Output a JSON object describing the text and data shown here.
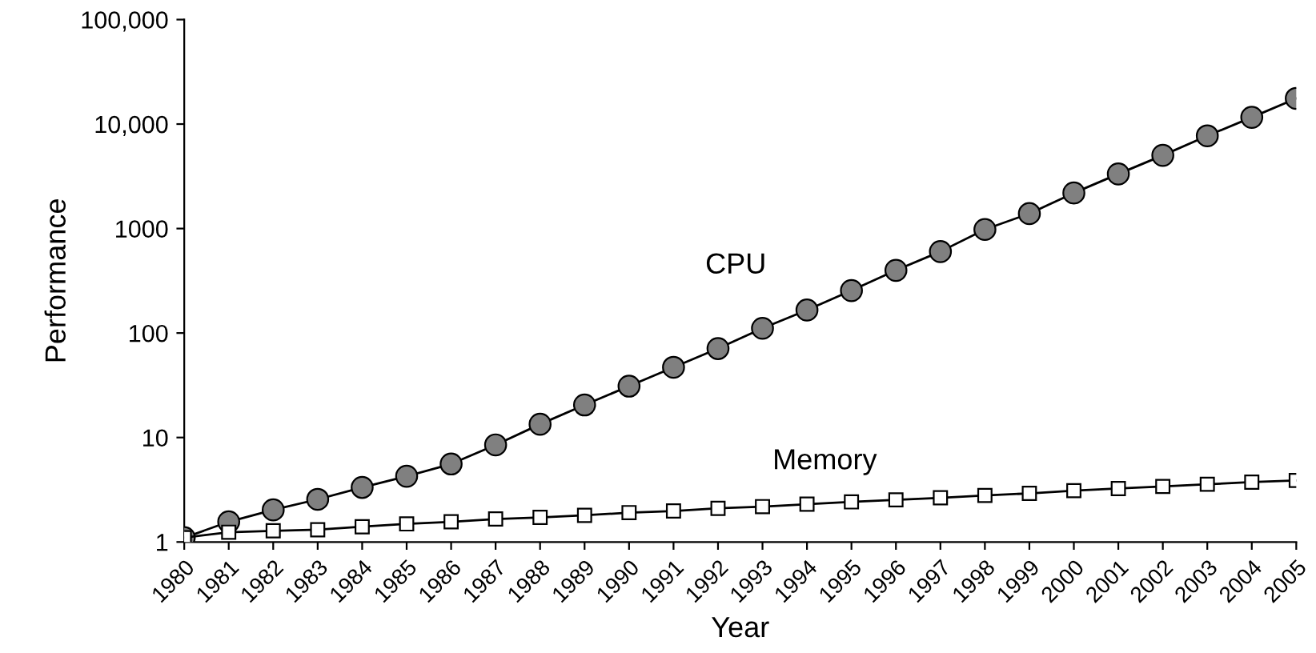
{
  "chart_data": {
    "type": "line",
    "xlabel": "Year",
    "ylabel": "Performance",
    "log": "y",
    "x": [
      1980,
      1981,
      1982,
      1983,
      1984,
      1985,
      1986,
      1987,
      1988,
      1989,
      1990,
      1991,
      1992,
      1993,
      1994,
      1995,
      1996,
      1997,
      1998,
      1999,
      2000,
      2001,
      2002,
      2003,
      2004,
      2005
    ],
    "series": [
      {
        "name": "CPU",
        "color": "#808080",
        "marker": "circle",
        "values": [
          1.1,
          1.56,
          2.03,
          2.56,
          3.33,
          4.26,
          5.58,
          8.5,
          13.4,
          20.5,
          31,
          47,
          71,
          111,
          166,
          255,
          398,
          602,
          980,
          1390,
          2190,
          3330,
          5020,
          7720,
          11600,
          17600
        ]
      },
      {
        "name": "Memory",
        "color": "#ffffff",
        "marker": "square",
        "values": [
          1.1,
          1.24,
          1.28,
          1.31,
          1.4,
          1.49,
          1.56,
          1.66,
          1.72,
          1.8,
          1.91,
          1.98,
          2.1,
          2.18,
          2.3,
          2.42,
          2.53,
          2.65,
          2.79,
          2.92,
          3.1,
          3.25,
          3.4,
          3.57,
          3.74,
          3.88
        ]
      }
    ],
    "xlim": [
      1980,
      2005
    ],
    "xticks": [
      1980,
      1981,
      1982,
      1983,
      1984,
      1985,
      1986,
      1987,
      1988,
      1989,
      1990,
      1991,
      1992,
      1993,
      1994,
      1995,
      1996,
      1997,
      1998,
      1999,
      2000,
      2001,
      2002,
      2003,
      2004,
      2005
    ],
    "ylim": [
      1,
      100000
    ],
    "yticks": [
      1,
      10,
      100,
      1000,
      {
        "value": 10000,
        "label": "10,000"
      },
      {
        "value": 100000,
        "label": "100,000"
      }
    ],
    "grid": false,
    "legend": false,
    "line_style": "solid"
  }
}
